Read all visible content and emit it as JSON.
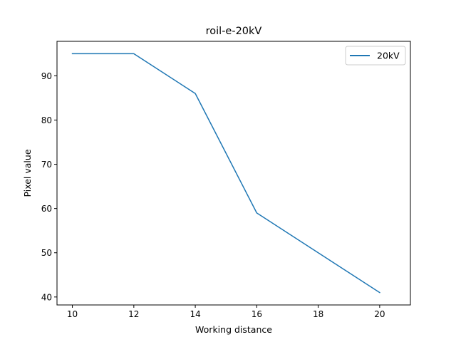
{
  "chart_data": {
    "type": "line",
    "title": "roil-e-20kV",
    "xlabel": "Working distance",
    "ylabel": "Pixel value",
    "xlim": [
      9.5,
      21
    ],
    "ylim": [
      38.2,
      97.8
    ],
    "xticks": [
      10,
      12,
      14,
      16,
      18,
      20
    ],
    "yticks": [
      40,
      50,
      60,
      70,
      80,
      90
    ],
    "grid": false,
    "legend": {
      "position": "top-right"
    },
    "series": [
      {
        "name": "20kV",
        "color": "#1f77b4",
        "x": [
          10,
          12,
          14,
          16,
          20
        ],
        "y": [
          95,
          95,
          86,
          59,
          41
        ]
      }
    ]
  }
}
